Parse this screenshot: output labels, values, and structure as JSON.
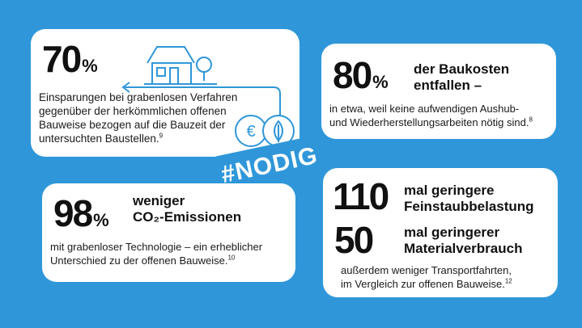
{
  "card_savings": {
    "value": "70",
    "unit": "%",
    "text": "Einsparungen bei grabenlosen Verfahren gegenüber der herkömmlichen offenen Bauweise bezogen auf die Bauzeit der untersuchten Baustellen.",
    "footnote": "9"
  },
  "card_costs": {
    "value": "80",
    "unit": "%",
    "heading_line1": "der Baukosten",
    "heading_line2": "entfallen –",
    "text_line1": "in etwa, weil keine aufwendigen Aushub-",
    "text_line2": "und Wiederherstellungsarbeiten nötig sind.",
    "footnote": "8"
  },
  "badge": {
    "label": "#NODIG"
  },
  "card_co2": {
    "value": "98",
    "unit": "%",
    "heading_line1": "weniger",
    "heading_line2": "CO₂-Emissionen",
    "text_line1": "mit grabenloser Technologie – ein erheblicher",
    "text_line2": "Unterschied zu der offenen Bauweise.",
    "footnote": "10"
  },
  "card_fine_dust": {
    "value1": "110",
    "heading1_line1": "mal geringere",
    "heading1_line2": "Feinstaubbelastung",
    "value2": "50",
    "heading2_line1": "mal geringerer",
    "heading2_line2": "Materialverbrauch",
    "text_line1": "außerdem weniger Transportfahrten,",
    "text_line2": "im Vergleich zur offenen Bauweise.",
    "footnote": "12"
  },
  "icons": [
    "house-icon",
    "tree-icon",
    "euro-coin-icon",
    "leaf-coin-icon",
    "arrow-left-icon"
  ],
  "colors": {
    "background": "#2f97d9",
    "line": "#2f97d9",
    "card": "#ffffff"
  }
}
